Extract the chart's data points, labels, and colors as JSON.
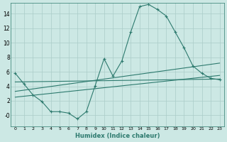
{
  "bg_color": "#cce8e4",
  "line_color": "#2d7a6e",
  "grid_color": "#aaccC8",
  "xlabel": "Humidex (Indice chaleur)",
  "xlim": [
    -0.5,
    23.5
  ],
  "ylim": [
    -1.5,
    15.5
  ],
  "xticks": [
    0,
    1,
    2,
    3,
    4,
    5,
    6,
    7,
    8,
    9,
    10,
    11,
    12,
    13,
    14,
    15,
    16,
    17,
    18,
    19,
    20,
    21,
    22,
    23
  ],
  "yticks": [
    0,
    2,
    4,
    6,
    8,
    10,
    12,
    14
  ],
  "ytick_labels": [
    "-0",
    "2",
    "4",
    "6",
    "8",
    "10",
    "12",
    "14"
  ],
  "line1_x": [
    0,
    1,
    2,
    3,
    4,
    5,
    6,
    7,
    8,
    9,
    10,
    11,
    12,
    13,
    14,
    15,
    16,
    17,
    18,
    19,
    20,
    21,
    22,
    23
  ],
  "line1_y": [
    5.8,
    4.3,
    2.8,
    1.9,
    0.5,
    0.5,
    0.3,
    -0.5,
    0.5,
    4.1,
    7.8,
    5.4,
    7.5,
    11.5,
    15.0,
    15.3,
    14.6,
    13.7,
    11.5,
    9.3,
    6.8,
    5.8,
    5.1,
    4.9
  ],
  "line2_x": [
    0,
    23
  ],
  "line2_y": [
    4.6,
    5.0
  ],
  "line3_x": [
    0,
    23
  ],
  "line3_y": [
    3.3,
    7.2
  ],
  "line4_x": [
    0,
    23
  ],
  "line4_y": [
    2.5,
    5.5
  ]
}
